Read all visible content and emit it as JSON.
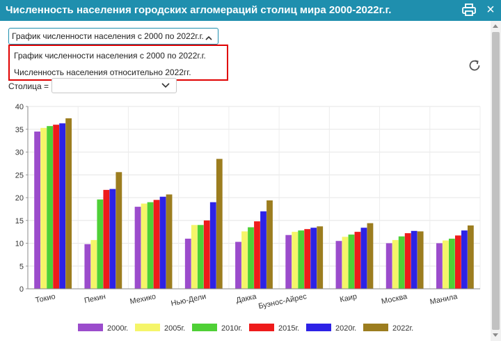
{
  "window": {
    "title": "Численность населения городских агломераций столиц мира 2000-2022г.г."
  },
  "view_select": {
    "value": "График численности населения с 2000 по 2022г.г.",
    "options": [
      "График численности населения с 2000 по 2022г.г.",
      "Численность населения относительно 2022гг."
    ]
  },
  "filter": {
    "label": "Столица =",
    "value": ""
  },
  "icons": {
    "print": "printer-icon",
    "close": "close-icon",
    "refresh": "refresh-icon",
    "chevron": "chevron-icon"
  },
  "colors": {
    "titlebar": "#1f8fae",
    "dropdown_border": "#e00000"
  },
  "chart_data": {
    "type": "bar",
    "categories": [
      "Токио",
      "Пекин",
      "Мехико",
      "Нью-Дели",
      "Дакка",
      "Буэнос-Айрес",
      "Каир",
      "Москва",
      "Манила"
    ],
    "series": [
      {
        "name": "2000г.",
        "color": "#9b4ccc",
        "values": [
          34.5,
          9.8,
          18.0,
          11.0,
          10.3,
          11.8,
          10.5,
          10.0,
          10.0
        ]
      },
      {
        "name": "2005г.",
        "color": "#f5f569",
        "values": [
          35.3,
          10.7,
          18.7,
          14.0,
          12.6,
          12.5,
          11.4,
          10.7,
          10.6
        ]
      },
      {
        "name": "2010г.",
        "color": "#4fd036",
        "values": [
          35.7,
          19.6,
          19.0,
          14.0,
          13.5,
          12.8,
          11.9,
          11.5,
          11.0
        ]
      },
      {
        "name": "2015г.",
        "color": "#ee1b1b",
        "values": [
          36.0,
          21.7,
          19.5,
          15.0,
          14.8,
          13.1,
          12.5,
          12.2,
          11.7
        ]
      },
      {
        "name": "2020г.",
        "color": "#2d22e6",
        "values": [
          36.3,
          21.9,
          20.2,
          19.0,
          17.0,
          13.4,
          13.4,
          12.7,
          12.8
        ]
      },
      {
        "name": "2022г.",
        "color": "#9c7d1f",
        "values": [
          37.4,
          25.6,
          20.7,
          28.5,
          19.4,
          13.7,
          14.4,
          12.6,
          13.9
        ]
      }
    ],
    "ylim": [
      0,
      40
    ],
    "yticks": [
      "0",
      "5",
      "10",
      "15",
      "20",
      "25",
      "30",
      "35",
      "40"
    ],
    "grid": true,
    "legend_position": "bottom"
  }
}
